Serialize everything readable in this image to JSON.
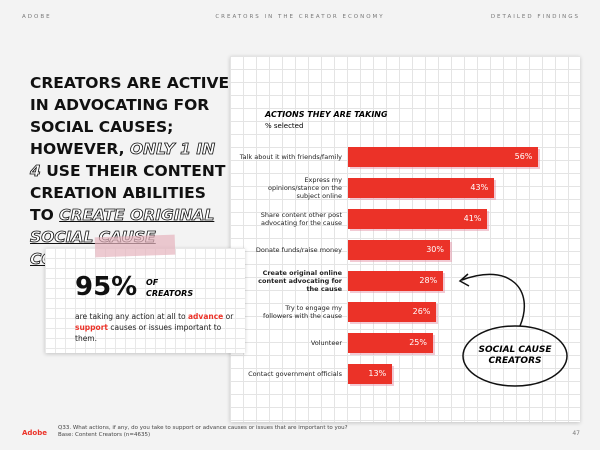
{
  "header": {
    "brand": "ADOBE",
    "report": "CREATORS IN THE CREATOR ECONOMY",
    "section": "DETAILED FINDINGS"
  },
  "headline": [
    "CREATORS ARE ACTIVE IN ADVOCATING FOR SOCIAL CAUSES; HOWEVER, ",
    "ONLY 1 IN 4",
    " USE THEIR CONTENT CREATION ABILITIES TO ",
    "CREATE ORIGINAL SOCIAL CAUSE CONTENT",
    "."
  ],
  "stat": {
    "value": "95%",
    "label": "OF CREATORS",
    "description": [
      "are taking any action at all to ",
      "advance",
      " or ",
      "support",
      " causes or issues important to them."
    ]
  },
  "chart_data": {
    "type": "bar",
    "title": "ACTIONS THEY ARE TAKING",
    "subtitle": "% selected",
    "categories": [
      "Talk about it with friends/family",
      "Express my opinions/stance on the subject online",
      "Share content other post advocating for the cause",
      "Donate funds/raise money",
      "Create original online content advocating for the cause",
      "Try to engage my followers with the cause",
      "Volunteer",
      "Contact government officials"
    ],
    "values": [
      56,
      43,
      41,
      30,
      28,
      26,
      25,
      13
    ],
    "value_labels": [
      "56%",
      "43%",
      "41%",
      "30%",
      "28%",
      "26%",
      "25%",
      "13%"
    ],
    "color": "#eb3228"
  },
  "annotation": "SOCIAL CAUSE CREATORS",
  "footer": {
    "question": "Q33. What actions, if any, do you take to support or advance causes or issues that are important to you?",
    "base": "Base: Content Creators (n=4635)",
    "logo": "Adobe",
    "page": "47"
  }
}
